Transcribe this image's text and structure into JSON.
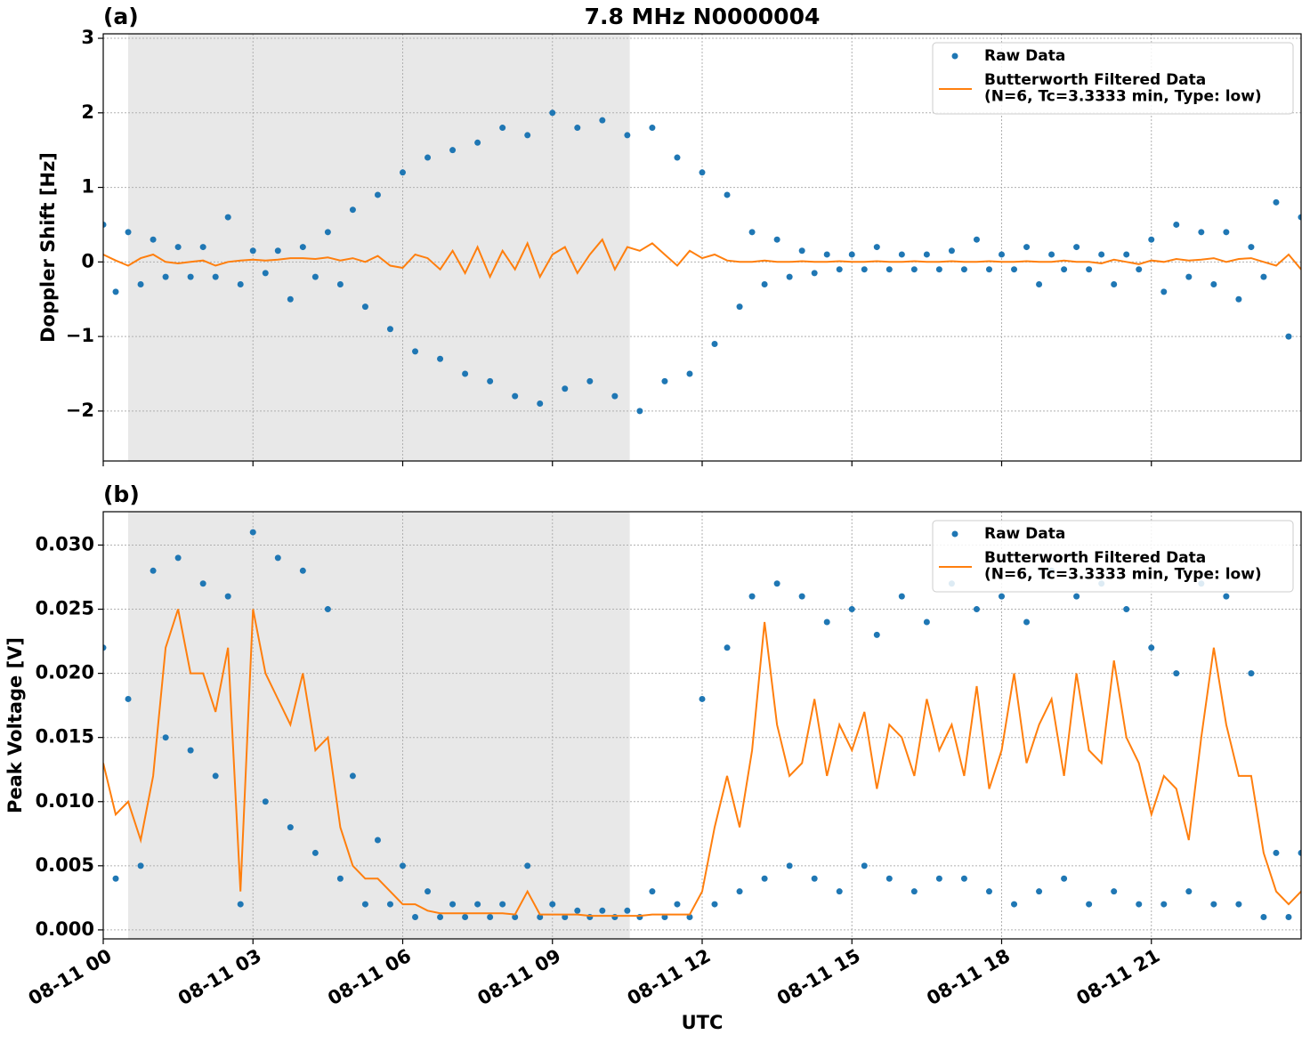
{
  "chart_data": [
    {
      "type": "line",
      "title": "7.8 MHz N0000004",
      "panel_label": "(a)",
      "ylabel": "Doppler Shift [Hz]",
      "xlim": [
        0,
        24
      ],
      "xticks": [
        0,
        3,
        6,
        9,
        12,
        15,
        18,
        21
      ],
      "ylim": [
        -2.67,
        3.06
      ],
      "yticks": [
        {
          "value": -2,
          "label": "−2"
        },
        {
          "value": -1,
          "label": "−1"
        },
        0,
        1,
        2,
        3
      ],
      "grid": true,
      "legend": "upper right",
      "shade": [
        0.5,
        10.55
      ],
      "shade_color": "#e8e8e8",
      "x": [
        0,
        0.25,
        0.5,
        0.75,
        1,
        1.25,
        1.5,
        1.75,
        2,
        2.25,
        2.5,
        2.75,
        3,
        3.25,
        3.5,
        3.75,
        4,
        4.25,
        4.5,
        4.75,
        5,
        5.25,
        5.5,
        5.75,
        6,
        6.25,
        6.5,
        6.75,
        7,
        7.25,
        7.5,
        7.75,
        8,
        8.25,
        8.5,
        8.75,
        9,
        9.25,
        9.5,
        9.75,
        10,
        10.25,
        10.5,
        10.75,
        11,
        11.25,
        11.5,
        11.75,
        12,
        12.25,
        12.5,
        12.75,
        13,
        13.25,
        13.5,
        13.75,
        14,
        14.25,
        14.5,
        14.75,
        15,
        15.25,
        15.5,
        15.75,
        16,
        16.25,
        16.5,
        16.75,
        17,
        17.25,
        17.5,
        17.75,
        18,
        18.25,
        18.5,
        18.75,
        19,
        19.25,
        19.5,
        19.75,
        20,
        20.25,
        20.5,
        20.75,
        21,
        21.25,
        21.5,
        21.75,
        22,
        22.25,
        22.5,
        22.75,
        23,
        23.25,
        23.5,
        23.75,
        24
      ],
      "series": [
        {
          "name": "Raw Data",
          "color": "#1f77b4",
          "style": "points",
          "values": [
            0.5,
            -0.4,
            0.4,
            -0.3,
            0.3,
            -0.2,
            0.2,
            -0.2,
            0.2,
            -0.2,
            0.6,
            -0.3,
            0.15,
            -0.15,
            0.15,
            -0.5,
            0.2,
            -0.2,
            0.4,
            -0.3,
            0.7,
            -0.6,
            0.9,
            -0.9,
            1.2,
            -1.2,
            1.4,
            -1.3,
            1.5,
            -1.5,
            1.6,
            -1.6,
            1.8,
            -1.8,
            1.7,
            -1.9,
            2.0,
            -1.7,
            1.8,
            -1.6,
            1.9,
            -1.8,
            1.7,
            -2.0,
            1.8,
            -1.6,
            1.4,
            -1.5,
            1.2,
            -1.1,
            0.9,
            -0.6,
            0.4,
            -0.3,
            0.3,
            -0.2,
            0.15,
            -0.15,
            0.1,
            -0.1,
            0.1,
            -0.1,
            0.2,
            -0.1,
            0.1,
            -0.1,
            0.1,
            -0.1,
            0.15,
            -0.1,
            0.3,
            -0.1,
            0.1,
            -0.1,
            0.2,
            -0.3,
            0.1,
            -0.1,
            0.2,
            -0.1,
            0.1,
            -0.3,
            0.1,
            -0.1,
            0.3,
            -0.4,
            0.5,
            -0.2,
            0.4,
            -0.3,
            0.4,
            -0.5,
            0.2,
            -0.2,
            0.8,
            -1.0,
            0.6
          ]
        },
        {
          "name": "Butterworth Filtered Data\n(N=6, Tc=3.3333 min, Type: low)",
          "color": "#ff7f0e",
          "style": "line",
          "values": [
            0.1,
            0.02,
            -0.05,
            0.05,
            0.1,
            0.0,
            -0.02,
            0.0,
            0.02,
            -0.05,
            0.0,
            0.02,
            0.03,
            0.02,
            0.03,
            0.05,
            0.05,
            0.04,
            0.06,
            0.02,
            0.05,
            0.0,
            0.08,
            -0.05,
            -0.08,
            0.1,
            0.05,
            -0.1,
            0.15,
            -0.15,
            0.2,
            -0.2,
            0.15,
            -0.1,
            0.25,
            -0.2,
            0.1,
            0.2,
            -0.15,
            0.1,
            0.3,
            -0.1,
            0.2,
            0.15,
            0.25,
            0.1,
            -0.05,
            0.15,
            0.05,
            0.1,
            0.02,
            0.0,
            0.0,
            0.02,
            0.0,
            0.0,
            0.01,
            0.0,
            0.0,
            0.01,
            0.0,
            0.0,
            0.01,
            0.0,
            0.0,
            0.01,
            0.0,
            0.0,
            0.01,
            0.0,
            0.0,
            0.01,
            0.0,
            0.0,
            0.01,
            0.0,
            0.0,
            0.02,
            0.0,
            0.0,
            -0.02,
            0.03,
            0.0,
            -0.03,
            0.02,
            0.0,
            0.04,
            0.02,
            0.03,
            0.05,
            0.0,
            0.04,
            0.05,
            0.0,
            -0.05,
            0.1,
            -0.1
          ]
        }
      ]
    },
    {
      "type": "line",
      "panel_label": "(b)",
      "ylabel": "Peak Voltage [V]",
      "xlabel": "UTC",
      "xlim": [
        0,
        24
      ],
      "xticks": [
        {
          "value": 0,
          "label": "08-11 00"
        },
        {
          "value": 3,
          "label": "08-11 03"
        },
        {
          "value": 6,
          "label": "08-11 06"
        },
        {
          "value": 9,
          "label": "08-11 09"
        },
        {
          "value": 12,
          "label": "08-11 12"
        },
        {
          "value": 15,
          "label": "08-11 15"
        },
        {
          "value": 18,
          "label": "08-11 18"
        },
        {
          "value": 21,
          "label": "08-11 21"
        }
      ],
      "ylim": [
        -0.0007,
        0.0326
      ],
      "yticks": [
        {
          "value": 0,
          "label": "0.000"
        },
        {
          "value": 0.005,
          "label": "0.005"
        },
        {
          "value": 0.01,
          "label": "0.010"
        },
        {
          "value": 0.015,
          "label": "0.015"
        },
        {
          "value": 0.02,
          "label": "0.020"
        },
        {
          "value": 0.025,
          "label": "0.025"
        },
        {
          "value": 0.03,
          "label": "0.030"
        }
      ],
      "grid": true,
      "legend": "upper right",
      "shade": [
        0.5,
        10.55
      ],
      "shade_color": "#e8e8e8",
      "x": [
        0,
        0.25,
        0.5,
        0.75,
        1,
        1.25,
        1.5,
        1.75,
        2,
        2.25,
        2.5,
        2.75,
        3,
        3.25,
        3.5,
        3.75,
        4,
        4.25,
        4.5,
        4.75,
        5,
        5.25,
        5.5,
        5.75,
        6,
        6.25,
        6.5,
        6.75,
        7,
        7.25,
        7.5,
        7.75,
        8,
        8.25,
        8.5,
        8.75,
        9,
        9.25,
        9.5,
        9.75,
        10,
        10.25,
        10.5,
        10.75,
        11,
        11.25,
        11.5,
        11.75,
        12,
        12.25,
        12.5,
        12.75,
        13,
        13.25,
        13.5,
        13.75,
        14,
        14.25,
        14.5,
        14.75,
        15,
        15.25,
        15.5,
        15.75,
        16,
        16.25,
        16.5,
        16.75,
        17,
        17.25,
        17.5,
        17.75,
        18,
        18.25,
        18.5,
        18.75,
        19,
        19.25,
        19.5,
        19.75,
        20,
        20.25,
        20.5,
        20.75,
        21,
        21.25,
        21.5,
        21.75,
        22,
        22.25,
        22.5,
        22.75,
        23,
        23.25,
        23.5,
        23.75,
        24
      ],
      "series": [
        {
          "name": "Raw Data",
          "color": "#1f77b4",
          "style": "points",
          "values": [
            0.022,
            0.004,
            0.018,
            0.005,
            0.028,
            0.015,
            0.029,
            0.014,
            0.027,
            0.012,
            0.026,
            0.002,
            0.031,
            0.01,
            0.029,
            0.008,
            0.028,
            0.006,
            0.025,
            0.004,
            0.012,
            0.002,
            0.007,
            0.002,
            0.005,
            0.001,
            0.003,
            0.001,
            0.002,
            0.001,
            0.002,
            0.001,
            0.002,
            0.001,
            0.005,
            0.001,
            0.002,
            0.001,
            0.0015,
            0.001,
            0.0015,
            0.001,
            0.0015,
            0.001,
            0.003,
            0.001,
            0.002,
            0.001,
            0.018,
            0.002,
            0.022,
            0.003,
            0.026,
            0.004,
            0.027,
            0.005,
            0.026,
            0.004,
            0.024,
            0.003,
            0.025,
            0.005,
            0.023,
            0.004,
            0.026,
            0.003,
            0.024,
            0.004,
            0.027,
            0.004,
            0.025,
            0.003,
            0.026,
            0.002,
            0.024,
            0.003,
            0.028,
            0.004,
            0.026,
            0.002,
            0.027,
            0.003,
            0.025,
            0.002,
            0.022,
            0.002,
            0.02,
            0.003,
            0.027,
            0.002,
            0.026,
            0.002,
            0.02,
            0.001,
            0.006,
            0.001,
            0.006
          ]
        },
        {
          "name": "Butterworth Filtered Data\n(N=6, Tc=3.3333 min, Type: low)",
          "color": "#ff7f0e",
          "style": "line",
          "values": [
            0.013,
            0.009,
            0.01,
            0.007,
            0.012,
            0.022,
            0.025,
            0.02,
            0.02,
            0.017,
            0.022,
            0.003,
            0.025,
            0.02,
            0.018,
            0.016,
            0.02,
            0.014,
            0.015,
            0.008,
            0.005,
            0.004,
            0.004,
            0.003,
            0.002,
            0.002,
            0.0015,
            0.0013,
            0.0013,
            0.0013,
            0.0013,
            0.0013,
            0.0013,
            0.0012,
            0.003,
            0.0012,
            0.0012,
            0.0012,
            0.0012,
            0.0011,
            0.0011,
            0.0011,
            0.0011,
            0.0011,
            0.0012,
            0.0012,
            0.0012,
            0.0012,
            0.003,
            0.008,
            0.012,
            0.008,
            0.014,
            0.024,
            0.016,
            0.012,
            0.013,
            0.018,
            0.012,
            0.016,
            0.014,
            0.017,
            0.011,
            0.016,
            0.015,
            0.012,
            0.018,
            0.014,
            0.016,
            0.012,
            0.019,
            0.011,
            0.014,
            0.02,
            0.013,
            0.016,
            0.018,
            0.012,
            0.02,
            0.014,
            0.013,
            0.021,
            0.015,
            0.013,
            0.009,
            0.012,
            0.011,
            0.007,
            0.015,
            0.022,
            0.016,
            0.012,
            0.012,
            0.006,
            0.003,
            0.002,
            0.003
          ]
        }
      ]
    }
  ]
}
